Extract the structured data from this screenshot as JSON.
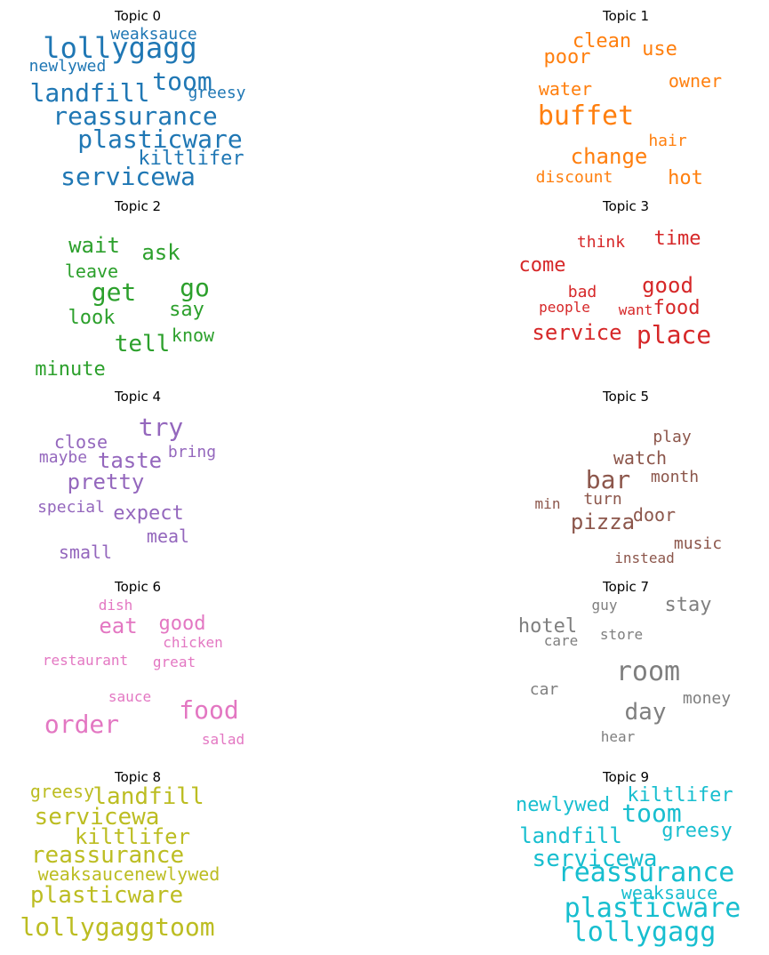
{
  "chart_data": {
    "type": "wordcloud",
    "panels": [
      {
        "title": "Topic 0",
        "color": "#1f77b4",
        "words": [
          {
            "text": "weaksauce",
            "weight": 0.45
          },
          {
            "text": "lollygagg",
            "weight": 0.85
          },
          {
            "text": "newlywed",
            "weight": 0.45
          },
          {
            "text": "toom",
            "weight": 0.75
          },
          {
            "text": "landfill",
            "weight": 0.8
          },
          {
            "text": "greesy",
            "weight": 0.45
          },
          {
            "text": "reassurance",
            "weight": 0.75
          },
          {
            "text": "plasticware",
            "weight": 0.8
          },
          {
            "text": "kiltlifer",
            "weight": 0.6
          },
          {
            "text": "servicewa",
            "weight": 0.75
          }
        ]
      },
      {
        "title": "Topic 1",
        "color": "#ff7f0e",
        "words": [
          {
            "text": "clean",
            "weight": 0.55
          },
          {
            "text": "use",
            "weight": 0.55
          },
          {
            "text": "poor",
            "weight": 0.55
          },
          {
            "text": "owner",
            "weight": 0.5
          },
          {
            "text": "water",
            "weight": 0.5
          },
          {
            "text": "buffet",
            "weight": 0.8
          },
          {
            "text": "hair",
            "weight": 0.45
          },
          {
            "text": "change",
            "weight": 0.65
          },
          {
            "text": "discount",
            "weight": 0.45
          },
          {
            "text": "hot",
            "weight": 0.55
          }
        ]
      },
      {
        "title": "Topic 2",
        "color": "#2ca02c",
        "words": [
          {
            "text": "wait",
            "weight": 0.6
          },
          {
            "text": "ask",
            "weight": 0.6
          },
          {
            "text": "leave",
            "weight": 0.45
          },
          {
            "text": "get",
            "weight": 0.75
          },
          {
            "text": "go",
            "weight": 0.75
          },
          {
            "text": "say",
            "weight": 0.55
          },
          {
            "text": "look",
            "weight": 0.55
          },
          {
            "text": "know",
            "weight": 0.5
          },
          {
            "text": "tell",
            "weight": 0.65
          },
          {
            "text": "minute",
            "weight": 0.55
          }
        ]
      },
      {
        "title": "Topic 3",
        "color": "#d62728",
        "words": [
          {
            "text": "think",
            "weight": 0.45
          },
          {
            "text": "time",
            "weight": 0.55
          },
          {
            "text": "come",
            "weight": 0.6
          },
          {
            "text": "good",
            "weight": 0.65
          },
          {
            "text": "bad",
            "weight": 0.45
          },
          {
            "text": "people",
            "weight": 0.4
          },
          {
            "text": "want",
            "weight": 0.4
          },
          {
            "text": "food",
            "weight": 0.55
          },
          {
            "text": "service",
            "weight": 0.7
          },
          {
            "text": "place",
            "weight": 0.8
          }
        ]
      },
      {
        "title": "Topic 4",
        "color": "#9467bd",
        "words": [
          {
            "text": "try",
            "weight": 0.75
          },
          {
            "text": "close",
            "weight": 0.5
          },
          {
            "text": "bring",
            "weight": 0.45
          },
          {
            "text": "maybe",
            "weight": 0.45
          },
          {
            "text": "taste",
            "weight": 0.65
          },
          {
            "text": "pretty",
            "weight": 0.65
          },
          {
            "text": "special",
            "weight": 0.45
          },
          {
            "text": "expect",
            "weight": 0.55
          },
          {
            "text": "meal",
            "weight": 0.5
          },
          {
            "text": "small",
            "weight": 0.5
          }
        ]
      },
      {
        "title": "Topic 5",
        "color": "#8c564b",
        "words": [
          {
            "text": "play",
            "weight": 0.45
          },
          {
            "text": "watch",
            "weight": 0.55
          },
          {
            "text": "bar",
            "weight": 0.8
          },
          {
            "text": "month",
            "weight": 0.45
          },
          {
            "text": "turn",
            "weight": 0.5
          },
          {
            "text": "min",
            "weight": 0.4
          },
          {
            "text": "door",
            "weight": 0.55
          },
          {
            "text": "pizza",
            "weight": 0.65
          },
          {
            "text": "music",
            "weight": 0.45
          },
          {
            "text": "instead",
            "weight": 0.4
          }
        ]
      },
      {
        "title": "Topic 6",
        "color": "#e377c2",
        "words": [
          {
            "text": "dish",
            "weight": 0.4
          },
          {
            "text": "eat",
            "weight": 0.6
          },
          {
            "text": "good",
            "weight": 0.55
          },
          {
            "text": "chicken",
            "weight": 0.45
          },
          {
            "text": "restaurant",
            "weight": 0.4
          },
          {
            "text": "great",
            "weight": 0.45
          },
          {
            "text": "sauce",
            "weight": 0.4
          },
          {
            "text": "food",
            "weight": 0.75
          },
          {
            "text": "order",
            "weight": 0.75
          },
          {
            "text": "salad",
            "weight": 0.45
          }
        ]
      },
      {
        "title": "Topic 7",
        "color": "#7f7f7f",
        "words": [
          {
            "text": "guy",
            "weight": 0.4
          },
          {
            "text": "stay",
            "weight": 0.6
          },
          {
            "text": "hotel",
            "weight": 0.55
          },
          {
            "text": "store",
            "weight": 0.4
          },
          {
            "text": "care",
            "weight": 0.4
          },
          {
            "text": "room",
            "weight": 0.8
          },
          {
            "text": "car",
            "weight": 0.45
          },
          {
            "text": "money",
            "weight": 0.5
          },
          {
            "text": "day",
            "weight": 0.65
          },
          {
            "text": "hear",
            "weight": 0.4
          }
        ]
      },
      {
        "title": "Topic 8",
        "color": "#bcbd22",
        "words": [
          {
            "text": "greesy",
            "weight": 0.55
          },
          {
            "text": "landfill",
            "weight": 0.75
          },
          {
            "text": "servicewa",
            "weight": 0.75
          },
          {
            "text": "kiltlifer",
            "weight": 0.7
          },
          {
            "text": "reassurance",
            "weight": 0.75
          },
          {
            "text": "weaksaucenewlywed",
            "weight": 0.55
          },
          {
            "text": "plasticware",
            "weight": 0.75
          },
          {
            "text": "lollygaggtoom",
            "weight": 0.8
          }
        ]
      },
      {
        "title": "Topic 9",
        "color": "#17becf",
        "words": [
          {
            "text": "kiltlifer",
            "weight": 0.65
          },
          {
            "text": "newlywed",
            "weight": 0.6
          },
          {
            "text": "toom",
            "weight": 0.75
          },
          {
            "text": "landfill",
            "weight": 0.75
          },
          {
            "text": "greesy",
            "weight": 0.6
          },
          {
            "text": "servicewa",
            "weight": 0.75
          },
          {
            "text": "reassurance",
            "weight": 0.85
          },
          {
            "text": "weaksauce",
            "weight": 0.6
          },
          {
            "text": "plasticware",
            "weight": 0.85
          },
          {
            "text": "lollygagg",
            "weight": 0.85
          }
        ]
      }
    ]
  }
}
